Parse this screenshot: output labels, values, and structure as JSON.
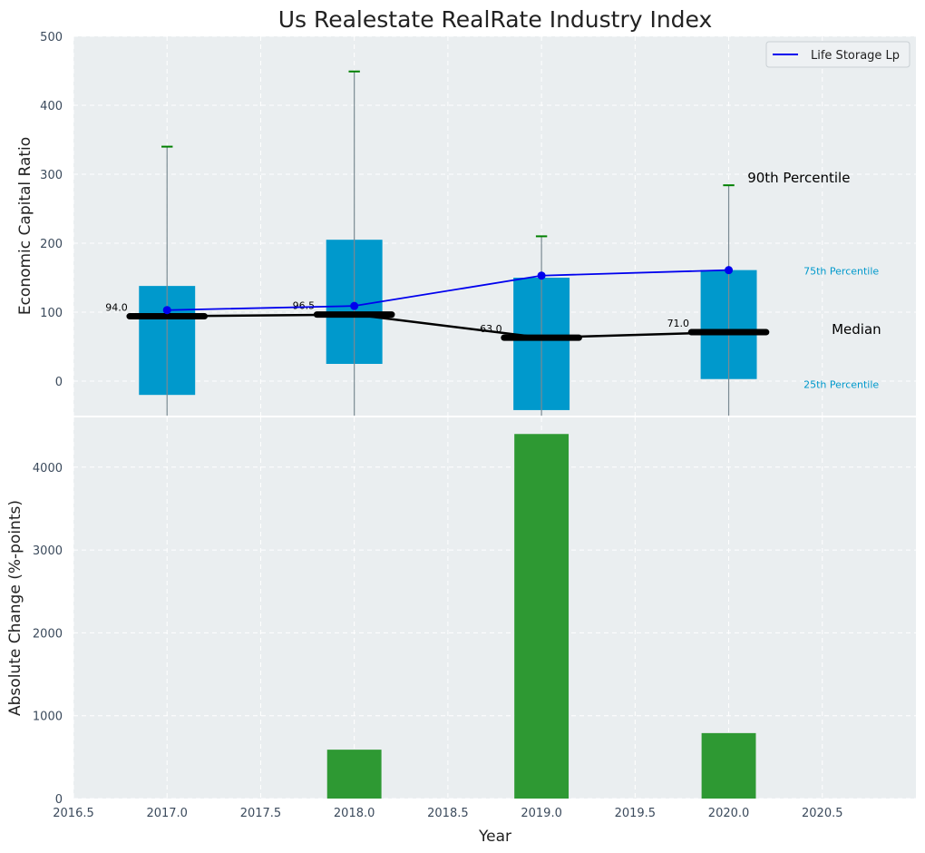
{
  "chart_data": {
    "title": "Us Realestate RealRate Industry Index",
    "colors": {
      "box": "#0099cc",
      "company": "#0000ee",
      "median": "#000000",
      "whisker_cap": "#008000",
      "change_bar": "#2e9933",
      "panel_bg": "#eaeef0"
    },
    "top": {
      "type": "box",
      "ylabel": "Economic Capital Ratio",
      "ylim": [
        -50,
        500
      ],
      "yticks": [
        0,
        100,
        200,
        300,
        400,
        500
      ],
      "years": [
        2017,
        2018,
        2019,
        2020
      ],
      "p25": [
        -20,
        25,
        -42,
        3
      ],
      "p75": [
        138,
        205,
        150,
        161
      ],
      "p90": [
        340,
        449,
        210,
        284
      ],
      "median": [
        94.0,
        96.5,
        63.0,
        71.0
      ],
      "median_labels": [
        "94.0",
        "96.5",
        "63.0",
        "71.0"
      ],
      "company": {
        "name": "Life Storage Lp",
        "values": [
          103,
          109,
          153,
          161
        ]
      },
      "annotations": {
        "p90": "90th Percentile",
        "p75": "75th Percentile",
        "median": "Median",
        "p25": "25th Percentile"
      },
      "legend_position": "top-right",
      "grid": true
    },
    "bottom": {
      "type": "bar",
      "ylabel": "Absolute Change (%-points)",
      "xlabel": "Year",
      "ylim": [
        0,
        4600
      ],
      "yticks": [
        0,
        1000,
        2000,
        3000,
        4000
      ],
      "years": [
        2018,
        2019,
        2020
      ],
      "values": [
        590,
        4400,
        790
      ],
      "grid": true
    },
    "x_axis": {
      "xlim": [
        2016.5,
        2021.0
      ],
      "xticks": [
        2016.5,
        2017.0,
        2017.5,
        2018.0,
        2018.5,
        2019.0,
        2019.5,
        2020.0,
        2020.5
      ],
      "xtick_labels": [
        "2016.5",
        "2017.0",
        "2017.5",
        "2018.0",
        "2018.5",
        "2019.0",
        "2019.5",
        "2020.0",
        "2020.5"
      ]
    }
  }
}
